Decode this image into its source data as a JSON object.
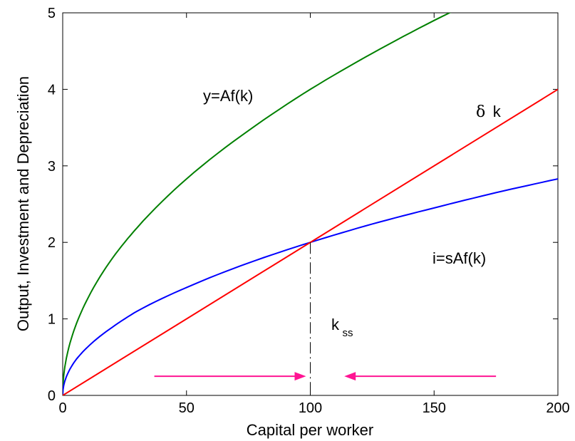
{
  "chart_data": {
    "type": "line",
    "title": "",
    "xlabel": "Capital per worker",
    "ylabel": "Output, Investment and Depreciation",
    "xlim": [
      0,
      200
    ],
    "ylim": [
      0,
      5
    ],
    "xticks": [
      "0",
      "50",
      "100",
      "150",
      "200"
    ],
    "yticks": [
      "0",
      "1",
      "2",
      "3",
      "4",
      "5"
    ],
    "grid": false,
    "series": [
      {
        "name": "y=Af(k)",
        "color": "#008000",
        "x": [
          0,
          1,
          5,
          10,
          20,
          30,
          50,
          75,
          100,
          125,
          150,
          175,
          200
        ],
        "y": [
          0,
          0.4,
          0.89,
          1.26,
          1.79,
          2.19,
          2.83,
          3.46,
          4.0,
          4.47,
          4.9,
          5.29,
          5.66
        ]
      },
      {
        "name": "i=sAf(k)",
        "color": "#0000ff",
        "x": [
          0,
          1,
          5,
          10,
          20,
          30,
          50,
          75,
          100,
          125,
          150,
          175,
          200
        ],
        "y": [
          0,
          0.2,
          0.45,
          0.63,
          0.89,
          1.1,
          1.41,
          1.73,
          2.0,
          2.24,
          2.45,
          2.65,
          2.83
        ]
      },
      {
        "name": "δ k",
        "color": "#ff0000",
        "x": [
          0,
          200
        ],
        "y": [
          0,
          4
        ]
      }
    ],
    "annotations": {
      "output_label": "y=Af(k)",
      "depreciation_symbol": "δ",
      "depreciation_var": "k",
      "investment_label": "i=sAf(k)",
      "steady_state_main": "k",
      "steady_state_sub": "ss"
    },
    "steady_state": {
      "k": 100,
      "value": 2
    },
    "arrows": [
      {
        "from": 37,
        "to": 100,
        "y": 0.25,
        "direction": "right"
      },
      {
        "from": 175,
        "to": 112,
        "y": 0.25,
        "direction": "left"
      }
    ],
    "arrow_color": "#ff1493"
  }
}
